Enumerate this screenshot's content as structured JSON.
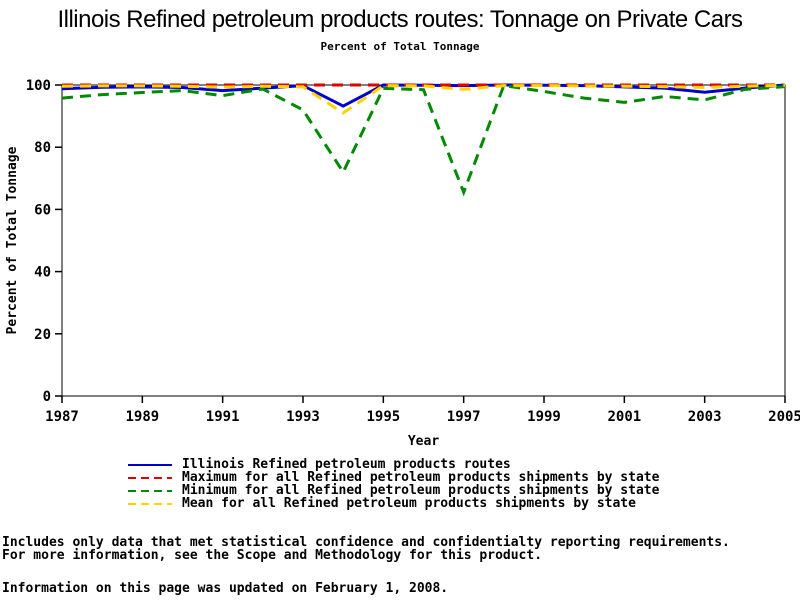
{
  "title": "Illinois Refined petroleum products routes: Tonnage on Private Cars",
  "subtitle": "Percent of Total Tonnage",
  "chart_data": {
    "type": "line",
    "x": [
      1987,
      1988,
      1989,
      1990,
      1991,
      1992,
      1993,
      1994,
      1995,
      1996,
      1997,
      1998,
      1999,
      2000,
      2001,
      2002,
      2003,
      2004,
      2005
    ],
    "xticks": [
      1987,
      1989,
      1991,
      1993,
      1995,
      1997,
      1999,
      2001,
      2003,
      2005
    ],
    "yticks": [
      0,
      20,
      40,
      60,
      80,
      100
    ],
    "ylim": [
      0,
      100
    ],
    "xlabel": "Year",
    "ylabel": "Percent of Total Tonnage",
    "grid": false,
    "legend_position": "bottom",
    "frame": true,
    "series": [
      {
        "name": "Illinois Refined petroleum products routes",
        "color": "#0000CD",
        "style": "solid",
        "values": [
          98.8,
          99.3,
          99.4,
          99.2,
          98.2,
          99.0,
          99.8,
          93.2,
          100,
          99.9,
          99.8,
          100,
          99.9,
          99.8,
          99.4,
          99.0,
          97.7,
          99.0,
          100
        ]
      },
      {
        "name": "Maximum for all Refined petroleum products shipments by state",
        "color": "#E00000",
        "style": "dashed",
        "values": [
          100,
          100,
          100,
          100,
          100,
          100,
          100,
          100,
          100,
          100,
          100,
          100,
          100,
          100,
          100,
          100,
          100,
          100,
          100
        ]
      },
      {
        "name": "Minimum for all Refined petroleum products shipments by state",
        "color": "#008A00",
        "style": "dashed",
        "values": [
          95.8,
          96.9,
          97.6,
          98.2,
          96.6,
          98.7,
          92.0,
          72.0,
          98.9,
          98.5,
          65.5,
          99.8,
          97.9,
          95.8,
          94.4,
          96.3,
          95.2,
          98.6,
          99.5
        ]
      },
      {
        "name": "Mean for all Refined petroleum products shipments by state",
        "color": "#FFD300",
        "style": "dashed",
        "values": [
          99.6,
          99.7,
          99.7,
          99.6,
          99.3,
          99.6,
          99.4,
          91.0,
          99.8,
          99.7,
          98.6,
          99.8,
          99.8,
          99.7,
          99.6,
          99.5,
          99.2,
          99.6,
          99.9
        ]
      }
    ]
  },
  "footnotes": {
    "line1": "Includes only data that met statistical confidence and confidentialty reporting requirements.",
    "line2": "For more information, see the Scope and Methodology for this product.",
    "updated": "Information on this page was updated on February 1, 2008."
  }
}
